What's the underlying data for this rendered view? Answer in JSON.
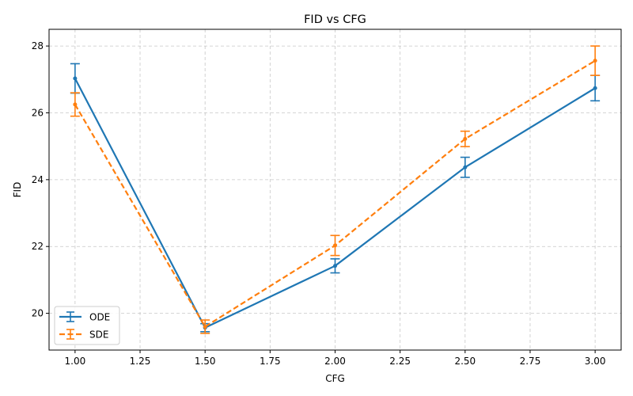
{
  "chart_data": {
    "type": "line",
    "title": "FID vs CFG",
    "xlabel": "CFG",
    "ylabel": "FID",
    "xlim": [
      0.9,
      3.1
    ],
    "ylim": [
      18.9,
      28.5
    ],
    "x_ticks": [
      1.0,
      1.25,
      1.5,
      1.75,
      2.0,
      2.25,
      2.5,
      2.75,
      3.0
    ],
    "x_tick_labels": [
      "1.00",
      "1.25",
      "1.50",
      "1.75",
      "2.00",
      "2.25",
      "2.50",
      "2.75",
      "3.00"
    ],
    "y_ticks": [
      20,
      22,
      24,
      26,
      28
    ],
    "y_tick_labels": [
      "20",
      "22",
      "24",
      "26",
      "28"
    ],
    "grid": true,
    "legend_position": "bottom-left",
    "x": [
      1.0,
      1.5,
      2.0,
      2.5,
      3.0
    ],
    "series": [
      {
        "name": "ODE",
        "values": [
          27.03,
          19.57,
          21.42,
          24.37,
          26.74
        ],
        "errors": [
          0.44,
          0.12,
          0.21,
          0.3,
          0.38
        ],
        "color": "#1f77b4",
        "linestyle": "solid"
      },
      {
        "name": "SDE",
        "values": [
          26.25,
          19.6,
          22.03,
          25.22,
          27.56
        ],
        "errors": [
          0.35,
          0.2,
          0.3,
          0.23,
          0.44
        ],
        "color": "#ff7f0e",
        "linestyle": "dashed"
      }
    ]
  }
}
